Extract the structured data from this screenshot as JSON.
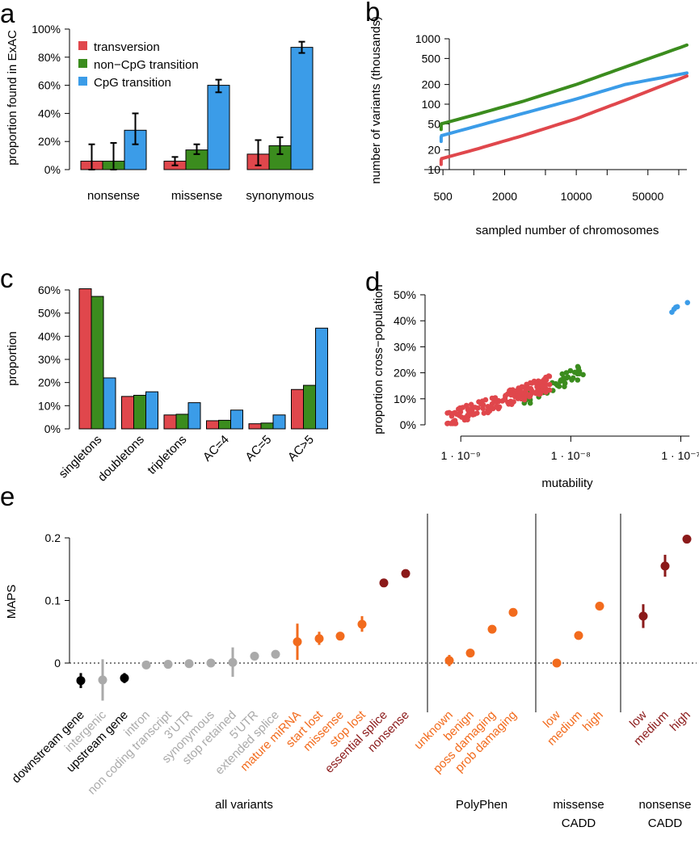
{
  "colors": {
    "transversion": "#e0474c",
    "non_cpg": "#3b8c1e",
    "cpg": "#3b9ce8",
    "black": "#000000",
    "gray": "#aaaaaa",
    "orange": "#f26b1d",
    "darkred": "#8b1a1a"
  },
  "chart_data": [
    {
      "panel": "a",
      "type": "bar",
      "ylabel": "proportion found in ExAC",
      "ylim": [
        0,
        1
      ],
      "yticks": [
        "0%",
        "20%",
        "40%",
        "60%",
        "80%",
        "100%"
      ],
      "categories": [
        "nonsense",
        "missense",
        "synonymous"
      ],
      "series": [
        {
          "name": "transversion",
          "values": [
            0.06,
            0.06,
            0.11
          ],
          "err_low": [
            0.0,
            0.03,
            0.03
          ],
          "err_high": [
            0.18,
            0.09,
            0.21
          ]
        },
        {
          "name": "non−CpG transition",
          "values": [
            0.06,
            0.14,
            0.17
          ],
          "err_low": [
            0.0,
            0.11,
            0.11
          ],
          "err_high": [
            0.19,
            0.18,
            0.23
          ]
        },
        {
          "name": "CpG transition",
          "values": [
            0.28,
            0.6,
            0.87
          ],
          "err_low": [
            0.18,
            0.55,
            0.83
          ],
          "err_high": [
            0.4,
            0.64,
            0.91
          ]
        }
      ]
    },
    {
      "panel": "b",
      "type": "line",
      "xlabel": "sampled number of chromosomes",
      "ylabel": "number of variants (thousands)",
      "xscale": "log",
      "yscale": "log",
      "xlim": [
        300,
        120000
      ],
      "ylim": [
        10,
        1000
      ],
      "xticks": [
        500,
        2000,
        10000,
        50000
      ],
      "xtick_labels": [
        "500",
        "2000",
        "10000",
        "50000"
      ],
      "yticks": [
        10,
        20,
        50,
        100,
        200,
        500,
        1000
      ],
      "ytick_labels": [
        "10",
        "20",
        "50",
        "100",
        "200",
        "500",
        "1000"
      ],
      "series": [
        {
          "name": "non−CpG transition",
          "x": [
            300,
            1000,
            3000,
            10000,
            30000,
            120000
          ],
          "y": [
            41,
            68,
            110,
            200,
            370,
            800
          ]
        },
        {
          "name": "CpG transition",
          "x": [
            300,
            1000,
            3000,
            10000,
            30000,
            120000
          ],
          "y": [
            27,
            45,
            72,
            120,
            200,
            300
          ]
        },
        {
          "name": "transversion",
          "x": [
            300,
            1000,
            3000,
            10000,
            30000,
            120000
          ],
          "y": [
            12,
            20,
            33,
            60,
            115,
            270
          ]
        }
      ]
    },
    {
      "panel": "c",
      "type": "bar",
      "ylabel": "proportion",
      "ylim": [
        0,
        0.6
      ],
      "yticks": [
        "0%",
        "10%",
        "20%",
        "30%",
        "40%",
        "50%",
        "60%"
      ],
      "categories": [
        "singletons",
        "doubletons",
        "tripletons",
        "AC=4",
        "AC=5",
        "AC>5"
      ],
      "series": [
        {
          "name": "transversion",
          "values": [
            0.605,
            0.14,
            0.06,
            0.035,
            0.022,
            0.17
          ]
        },
        {
          "name": "non−CpG transition",
          "values": [
            0.572,
            0.145,
            0.063,
            0.037,
            0.025,
            0.188
          ]
        },
        {
          "name": "CpG transition",
          "values": [
            0.22,
            0.16,
            0.113,
            0.081,
            0.06,
            0.435
          ]
        }
      ]
    },
    {
      "panel": "d",
      "type": "scatter",
      "xlabel": "mutability",
      "ylabel": "proportion cross−population",
      "xscale": "log",
      "xlim": [
        6e-10,
        1.3e-07
      ],
      "ylim": [
        0,
        0.5
      ],
      "xticks": [
        "1 · 10⁻⁹",
        "1 · 10⁻⁸",
        "1 · 10⁻⁷"
      ],
      "yticks": [
        "0%",
        "10%",
        "20%",
        "30%",
        "40%",
        "50%"
      ],
      "series": [
        {
          "name": "transversion",
          "x_range": [
            7.5e-10,
            6.5e-09
          ],
          "y_range": [
            0.02,
            0.16
          ],
          "n": 160
        },
        {
          "name": "non−CpG transition",
          "x_range": [
            3.5e-09,
            1.3e-08
          ],
          "y_range": [
            0.09,
            0.21
          ],
          "n": 45
        },
        {
          "name": "CpG transition",
          "x": [
            8.3e-08,
            8.7e-08,
            9e-08,
            9.3e-08,
            1.15e-07
          ],
          "y": [
            0.433,
            0.445,
            0.452,
            0.454,
            0.47
          ]
        }
      ]
    },
    {
      "panel": "e",
      "type": "scatter",
      "ylabel": "MAPS",
      "ylim": [
        -0.05,
        0.22
      ],
      "yticks": [
        "0",
        "0.1",
        "0.2"
      ],
      "groups": [
        "all variants",
        "PolyPhen",
        "missense CADD",
        "nonsense CADD"
      ],
      "points": [
        {
          "label": "downstream gene",
          "group": 0,
          "value": -0.028,
          "low": -0.04,
          "high": -0.016,
          "color": "black"
        },
        {
          "label": "intergenic",
          "group": 0,
          "value": -0.027,
          "low": -0.06,
          "high": 0.006,
          "color": "gray"
        },
        {
          "label": "upstream gene",
          "group": 0,
          "value": -0.024,
          "low": -0.032,
          "high": -0.016,
          "color": "black"
        },
        {
          "label": "intron",
          "group": 0,
          "value": -0.003,
          "low": -0.003,
          "high": -0.003,
          "color": "gray"
        },
        {
          "label": "non coding transcript",
          "group": 0,
          "value": -0.002,
          "low": -0.002,
          "high": -0.002,
          "color": "gray"
        },
        {
          "label": "3'UTR",
          "group": 0,
          "value": -0.001,
          "low": -0.001,
          "high": -0.001,
          "color": "gray"
        },
        {
          "label": "synonymous",
          "group": 0,
          "value": 0.0,
          "low": 0.0,
          "high": 0.0,
          "color": "gray"
        },
        {
          "label": "stop retained",
          "group": 0,
          "value": 0.001,
          "low": -0.022,
          "high": 0.025,
          "color": "gray"
        },
        {
          "label": "5'UTR",
          "group": 0,
          "value": 0.011,
          "low": 0.011,
          "high": 0.011,
          "color": "gray"
        },
        {
          "label": "extended splice",
          "group": 0,
          "value": 0.014,
          "low": 0.014,
          "high": 0.014,
          "color": "gray"
        },
        {
          "label": "mature miRNA",
          "group": 0,
          "value": 0.034,
          "low": 0.005,
          "high": 0.063,
          "color": "orange"
        },
        {
          "label": "start lost",
          "group": 0,
          "value": 0.039,
          "low": 0.029,
          "high": 0.05,
          "color": "orange"
        },
        {
          "label": "missense",
          "group": 0,
          "value": 0.043,
          "low": 0.043,
          "high": 0.043,
          "color": "orange"
        },
        {
          "label": "stop lost",
          "group": 0,
          "value": 0.062,
          "low": 0.05,
          "high": 0.075,
          "color": "orange"
        },
        {
          "label": "essential splice",
          "group": 0,
          "value": 0.128,
          "low": 0.128,
          "high": 0.128,
          "color": "darkred"
        },
        {
          "label": "nonsense",
          "group": 0,
          "value": 0.143,
          "low": 0.143,
          "high": 0.143,
          "color": "darkred"
        },
        {
          "label": "unknown",
          "group": 1,
          "value": 0.004,
          "low": -0.005,
          "high": 0.013,
          "color": "orange"
        },
        {
          "label": "benign",
          "group": 1,
          "value": 0.016,
          "low": 0.016,
          "high": 0.016,
          "color": "orange"
        },
        {
          "label": "poss damaging",
          "group": 1,
          "value": 0.054,
          "low": 0.054,
          "high": 0.054,
          "color": "orange"
        },
        {
          "label": "prob damaging",
          "group": 1,
          "value": 0.081,
          "low": 0.081,
          "high": 0.081,
          "color": "orange"
        },
        {
          "label": "low",
          "group": 2,
          "value": 0.0,
          "low": 0.0,
          "high": 0.0,
          "color": "orange"
        },
        {
          "label": "medium",
          "group": 2,
          "value": 0.044,
          "low": 0.044,
          "high": 0.044,
          "color": "orange"
        },
        {
          "label": "high",
          "group": 2,
          "value": 0.091,
          "low": 0.091,
          "high": 0.091,
          "color": "orange"
        },
        {
          "label": "low",
          "group": 3,
          "value": 0.075,
          "low": 0.056,
          "high": 0.094,
          "color": "darkred"
        },
        {
          "label": "medium",
          "group": 3,
          "value": 0.155,
          "low": 0.138,
          "high": 0.173,
          "color": "darkred"
        },
        {
          "label": "high",
          "group": 3,
          "value": 0.198,
          "low": 0.198,
          "high": 0.198,
          "color": "darkred"
        }
      ]
    }
  ],
  "panels": {
    "a": {
      "letter": "a"
    },
    "b": {
      "letter": "b"
    },
    "c": {
      "letter": "c"
    },
    "d": {
      "letter": "d"
    },
    "e": {
      "letter": "e",
      "group_labels": [
        "all variants",
        "PolyPhen",
        "missense",
        "CADD",
        "nonsense",
        "CADD"
      ]
    }
  },
  "legend": [
    "transversion",
    "non−CpG transition",
    "CpG transition"
  ]
}
